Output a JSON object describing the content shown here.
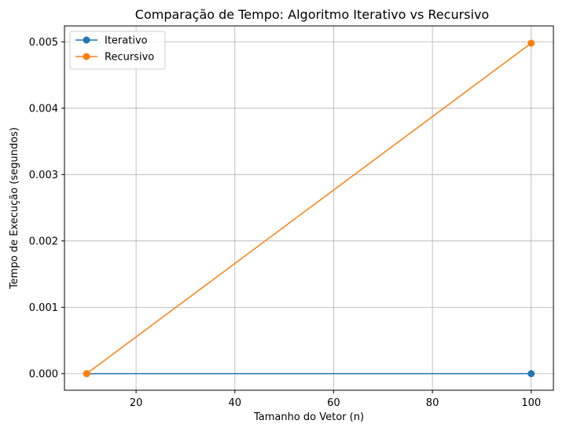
{
  "chart_data": {
    "type": "line",
    "title": "Comparação de Tempo: Algoritmo Iterativo vs Recursivo",
    "xlabel": "Tamanho do Vetor (n)",
    "ylabel": "Tempo de Execução (segundos)",
    "xlim": [
      5.5,
      104.5
    ],
    "ylim": [
      -0.00025,
      0.00524
    ],
    "x_ticks": [
      20,
      40,
      60,
      80,
      100
    ],
    "y_ticks": [
      0.0,
      0.001,
      0.002,
      0.003,
      0.004,
      0.005
    ],
    "x_tick_labels": [
      "20",
      "40",
      "60",
      "80",
      "100"
    ],
    "y_tick_labels": [
      "0.000",
      "0.001",
      "0.002",
      "0.003",
      "0.004",
      "0.005"
    ],
    "grid": true,
    "legend_position": "top-left",
    "series": [
      {
        "name": "Iterativo",
        "color": "#1f77b4",
        "x": [
          10,
          100
        ],
        "y": [
          0.0,
          0.0
        ]
      },
      {
        "name": "Recursivo",
        "color": "#ff7f0e",
        "x": [
          10,
          100
        ],
        "y": [
          0.0,
          0.00498
        ]
      }
    ]
  }
}
